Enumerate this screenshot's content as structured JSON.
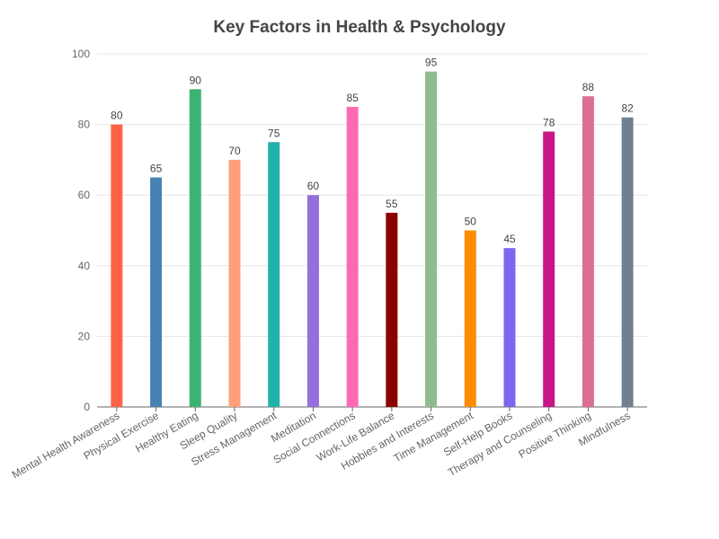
{
  "chart_data": {
    "type": "bar",
    "title": "Key Factors in Health & Psychology",
    "xlabel": "",
    "ylabel": "",
    "ylim": [
      0,
      100
    ],
    "yticks": [
      0,
      20,
      40,
      60,
      80,
      100
    ],
    "grid": true,
    "categories": [
      "Mental Health Awareness",
      "Physical Exercise",
      "Healthy Eating",
      "Sleep Quality",
      "Stress Management",
      "Meditation",
      "Social Connections",
      "Work-Life Balance",
      "Hobbies and Interests",
      "Time Management",
      "Self-Help Books",
      "Therapy and Counseling",
      "Positive Thinking",
      "Mindfulness"
    ],
    "values": [
      80,
      65,
      90,
      70,
      75,
      60,
      85,
      55,
      95,
      50,
      45,
      78,
      88,
      82
    ],
    "colors": [
      "#FF6347",
      "#4682B4",
      "#3CB371",
      "#FFA07A",
      "#20B2AA",
      "#9370DB",
      "#FF69B4",
      "#8B0000",
      "#8FBC8F",
      "#FF8C00",
      "#7B68EE",
      "#C71585",
      "#DB7093",
      "#708090"
    ]
  }
}
